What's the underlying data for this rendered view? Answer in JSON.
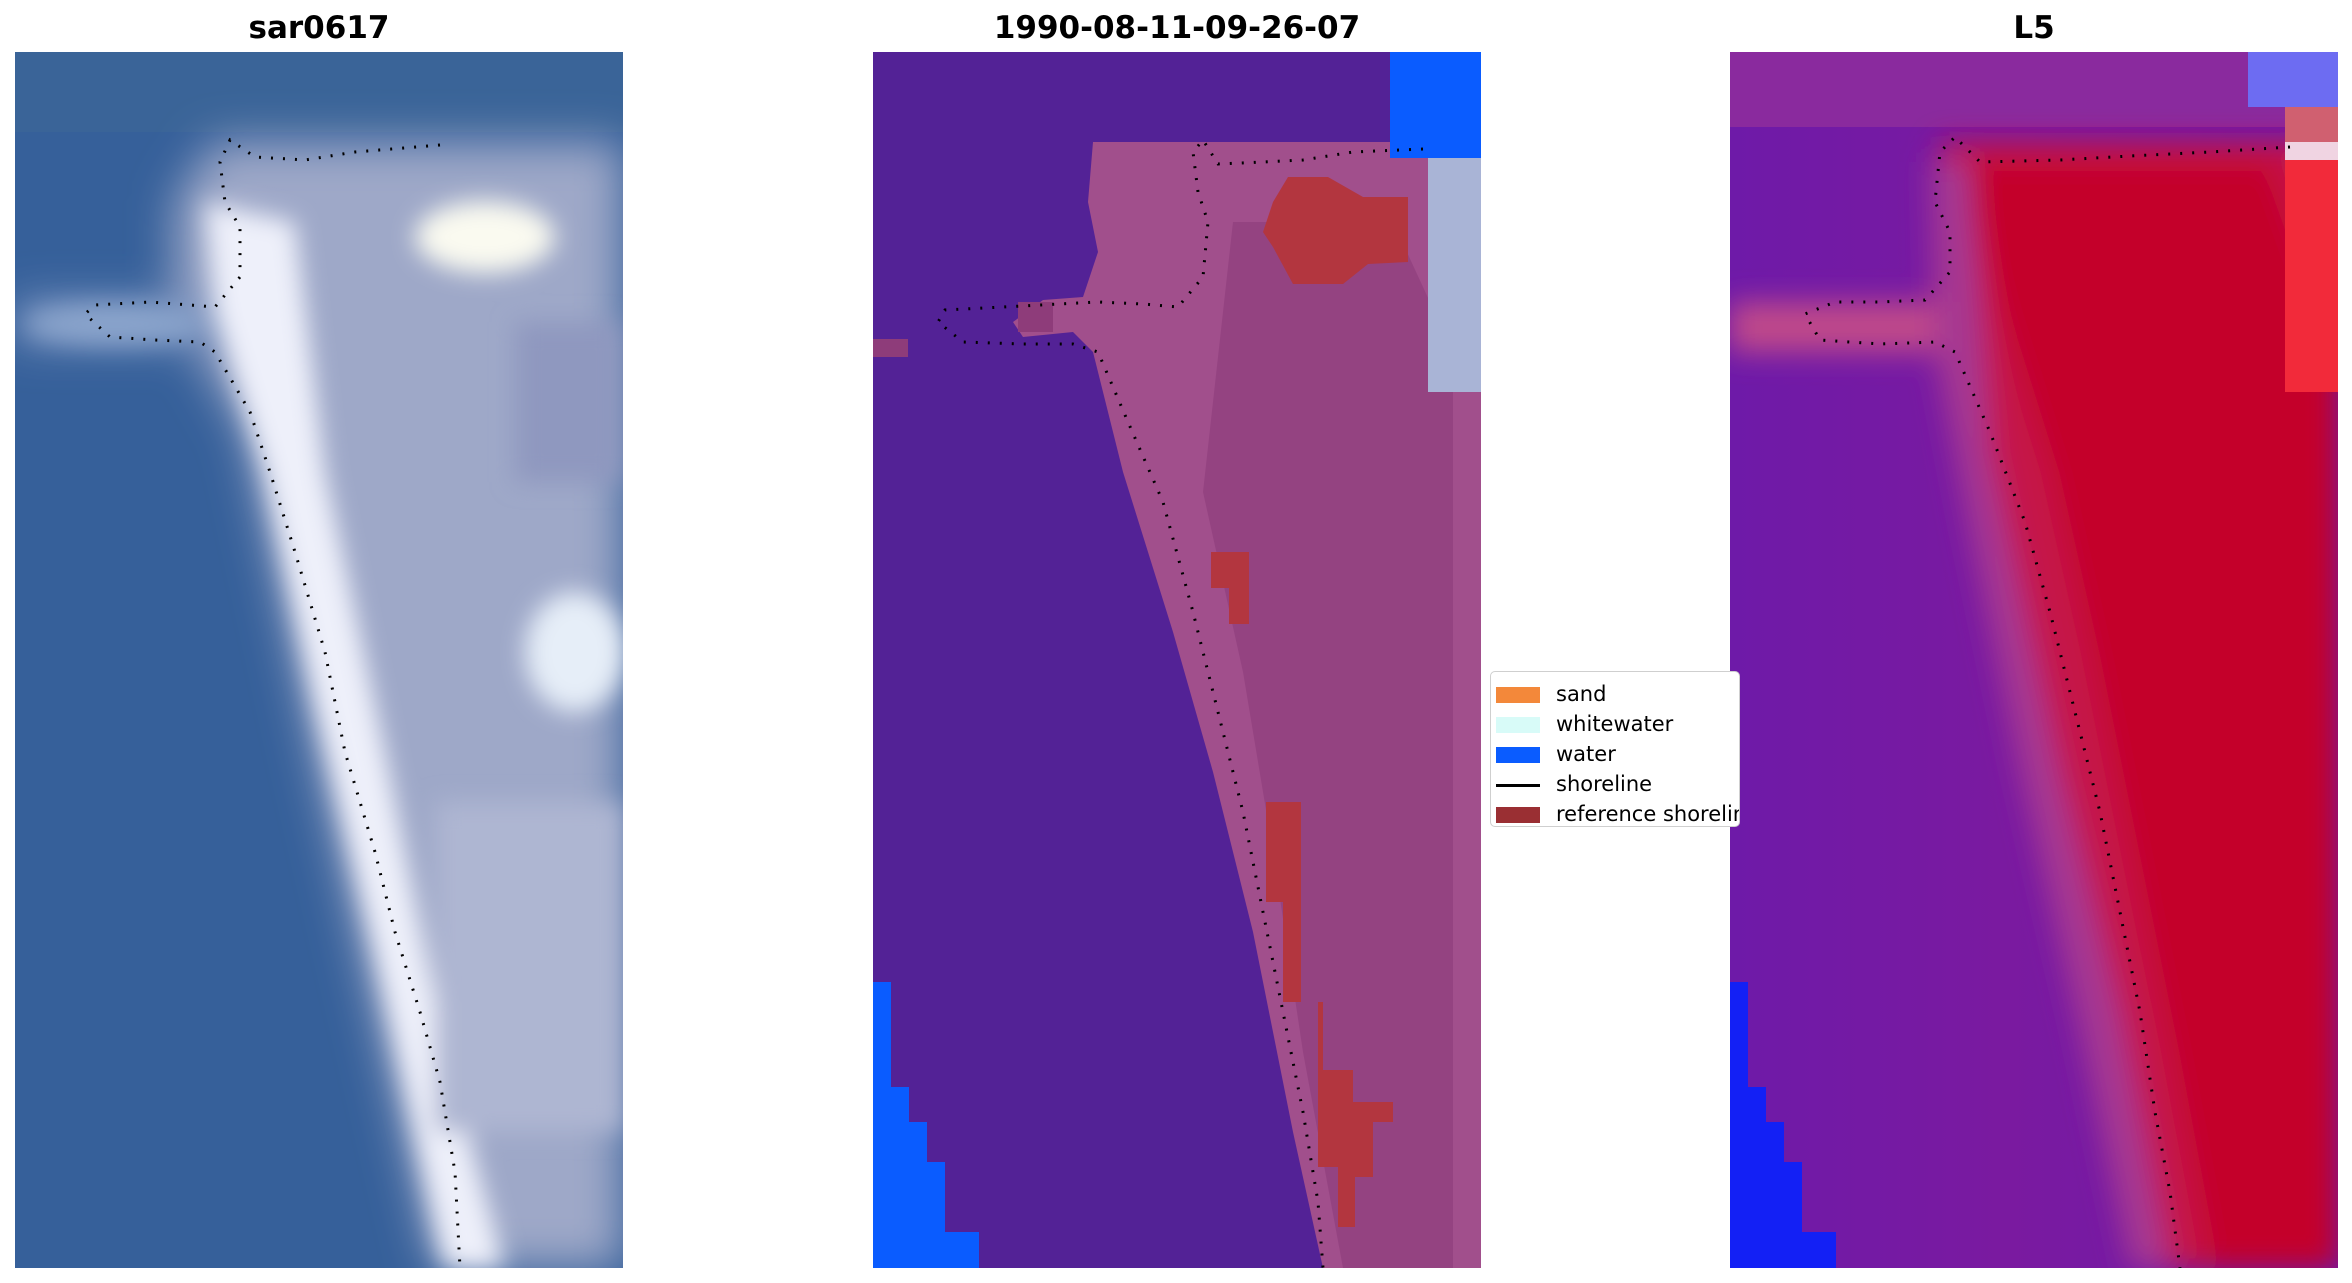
{
  "panels": [
    {
      "title": "sar0617"
    },
    {
      "title": "1990-08-11-09-26-07"
    },
    {
      "title": "L5"
    }
  ],
  "legend": {
    "items": [
      {
        "label": "sand",
        "kind": "patch",
        "color": "#f3883a"
      },
      {
        "label": "whitewater",
        "kind": "patch",
        "color": "#d8fbf8"
      },
      {
        "label": "water",
        "kind": "patch",
        "color": "#0a5cff"
      },
      {
        "label": "shoreline",
        "kind": "line",
        "color": "#000000"
      },
      {
        "label": "reference shoreline",
        "kind": "patch",
        "color": "#9a2f33"
      }
    ]
  },
  "colors": {
    "rgb_sea": "#36609a",
    "rgb_sand": "#dfe3f0",
    "class_background": "#532296",
    "class_land": "#a14f8c",
    "class_reference": "#b3363f",
    "class_water": "#0a5cff",
    "index_low": "#6e1aa8",
    "index_high": "#c5002f",
    "index_water": "#1320f5"
  }
}
